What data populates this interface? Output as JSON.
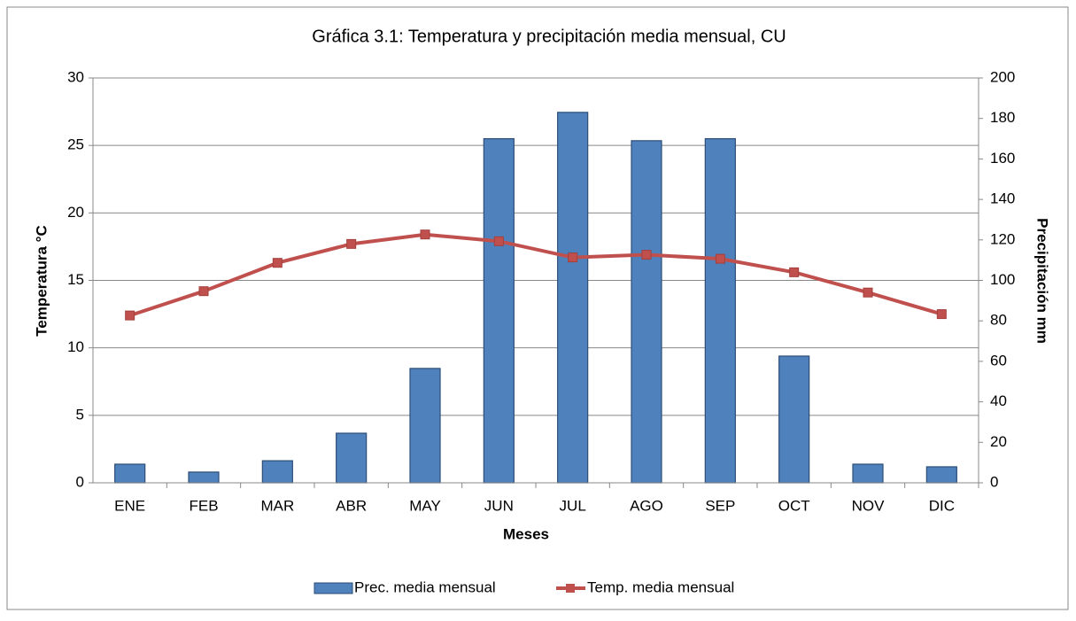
{
  "chart_data": {
    "type": "combo",
    "title": "Gráfica 3.1: Temperatura y precipitación media mensual, CU",
    "x_label": "Meses",
    "y_label": "Temperatura °C",
    "y2_label": "Precipitación mm",
    "categories": [
      "ENE",
      "FEB",
      "MAR",
      "ABR",
      "MAY",
      "JUN",
      "JUL",
      "AGO",
      "SEP",
      "OCT",
      "NOV",
      "DIC"
    ],
    "series": [
      {
        "name": "Prec. media mensual",
        "type": "bar",
        "axis": "y2",
        "color": "#4f81bd",
        "values": [
          9.2,
          5.3,
          10.9,
          24.5,
          56.5,
          170,
          183,
          169,
          170,
          62.6,
          9.2,
          7.9
        ]
      },
      {
        "name": "Temp. media mensual",
        "type": "line",
        "axis": "y",
        "color": "#c0504d",
        "values": [
          12.4,
          14.2,
          16.3,
          17.7,
          18.4,
          17.9,
          16.7,
          16.9,
          16.6,
          15.6,
          14.1,
          12.5
        ]
      }
    ],
    "ylim": [
      0,
      30
    ],
    "yticks": [
      0,
      5,
      10,
      15,
      20,
      25,
      30
    ],
    "y2lim": [
      0,
      200
    ],
    "y2ticks": [
      0,
      20,
      40,
      60,
      80,
      100,
      120,
      140,
      160,
      180,
      200
    ],
    "grid": true,
    "legend": "bottom"
  }
}
